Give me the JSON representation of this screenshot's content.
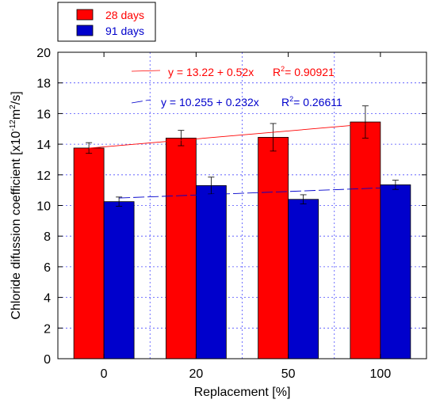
{
  "chart_data": {
    "type": "bar",
    "categories": [
      "0",
      "20",
      "50",
      "100"
    ],
    "x_values": [
      0,
      20,
      50,
      100
    ],
    "series": [
      {
        "name": "28 days",
        "color": "#ff0000",
        "values": [
          13.75,
          14.4,
          14.45,
          15.45
        ],
        "errors": [
          0.35,
          0.5,
          0.9,
          1.05
        ]
      },
      {
        "name": "91 days",
        "color": "#0000cc",
        "values": [
          10.25,
          11.3,
          10.4,
          11.35
        ],
        "errors": [
          0.3,
          0.55,
          0.3,
          0.3
        ]
      }
    ],
    "trendlines": [
      {
        "series": "28 days",
        "intercept": 13.22,
        "slope": 0.52,
        "color": "#ff0000",
        "label_eq": "y = 13.22 + 0.52x",
        "label_r2_prefix": "R",
        "label_r2_sup": "2",
        "label_r2_value": "= 0.90921"
      },
      {
        "series": "91 days",
        "intercept": 10.255,
        "slope": 0.232,
        "color": "#0000cc",
        "label_eq": "y = 10.255 + 0.232x",
        "label_r2_prefix": "R",
        "label_r2_sup": "2",
        "label_r2_value": "= 0.26611"
      }
    ],
    "xlabel": "Replacement [%]",
    "ylabel": {
      "part1": "Chloride difussion coefficient [x10",
      "sup1": "-12",
      "part2": "m",
      "sup2": "2",
      "part3": "/s]"
    },
    "ylim": [
      0,
      20
    ],
    "yticks": [
      0,
      2,
      4,
      6,
      8,
      10,
      12,
      14,
      16,
      18,
      20
    ],
    "grid": true,
    "legend_position": "top-left, outside plot"
  }
}
